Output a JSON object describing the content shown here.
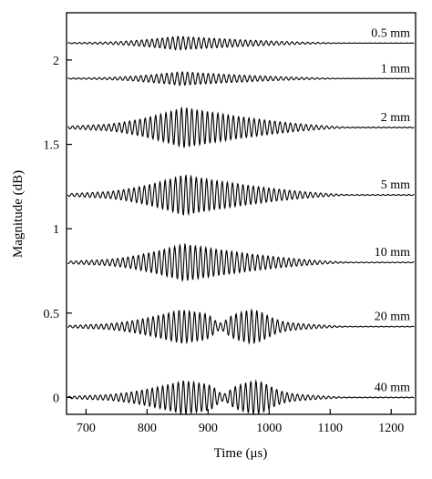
{
  "chart_data": {
    "type": "line",
    "xlabel": "Time (μs)",
    "ylabel": "Magnitude (dB)",
    "xlim": [
      668,
      1240
    ],
    "ylim": [
      -0.1,
      2.28
    ],
    "xticks": [
      700,
      800,
      900,
      1000,
      1100,
      1200
    ],
    "yticks": [
      0,
      0.5,
      1,
      1.5,
      2
    ],
    "ytick_labels": [
      "0",
      "0.5",
      "1",
      "1.5",
      "2"
    ],
    "grid": false,
    "series": [
      {
        "name": "0.5 mm",
        "baseline": 2.1,
        "peak_time": 850,
        "amplitude": 0.04,
        "end_time": 1160,
        "second_peak_time": null
      },
      {
        "name": "1 mm",
        "baseline": 1.89,
        "peak_time": 855,
        "amplitude": 0.04,
        "end_time": 1160,
        "second_peak_time": null
      },
      {
        "name": "2 mm",
        "baseline": 1.6,
        "peak_time": 860,
        "amplitude": 0.12,
        "end_time": 1160,
        "second_peak_time": null
      },
      {
        "name": "5 mm",
        "baseline": 1.2,
        "peak_time": 860,
        "amplitude": 0.12,
        "end_time": 1160,
        "second_peak_time": null
      },
      {
        "name": "10 mm",
        "baseline": 0.8,
        "peak_time": 860,
        "amplitude": 0.11,
        "end_time": 1160,
        "second_peak_time": null
      },
      {
        "name": "20 mm",
        "baseline": 0.42,
        "peak_time": 855,
        "amplitude": 0.1,
        "end_time": 1160,
        "second_peak_time": 975
      },
      {
        "name": "40 mm",
        "baseline": 0.0,
        "peak_time": 860,
        "amplitude": 0.1,
        "end_time": 1160,
        "second_peak_time": 980
      }
    ]
  }
}
